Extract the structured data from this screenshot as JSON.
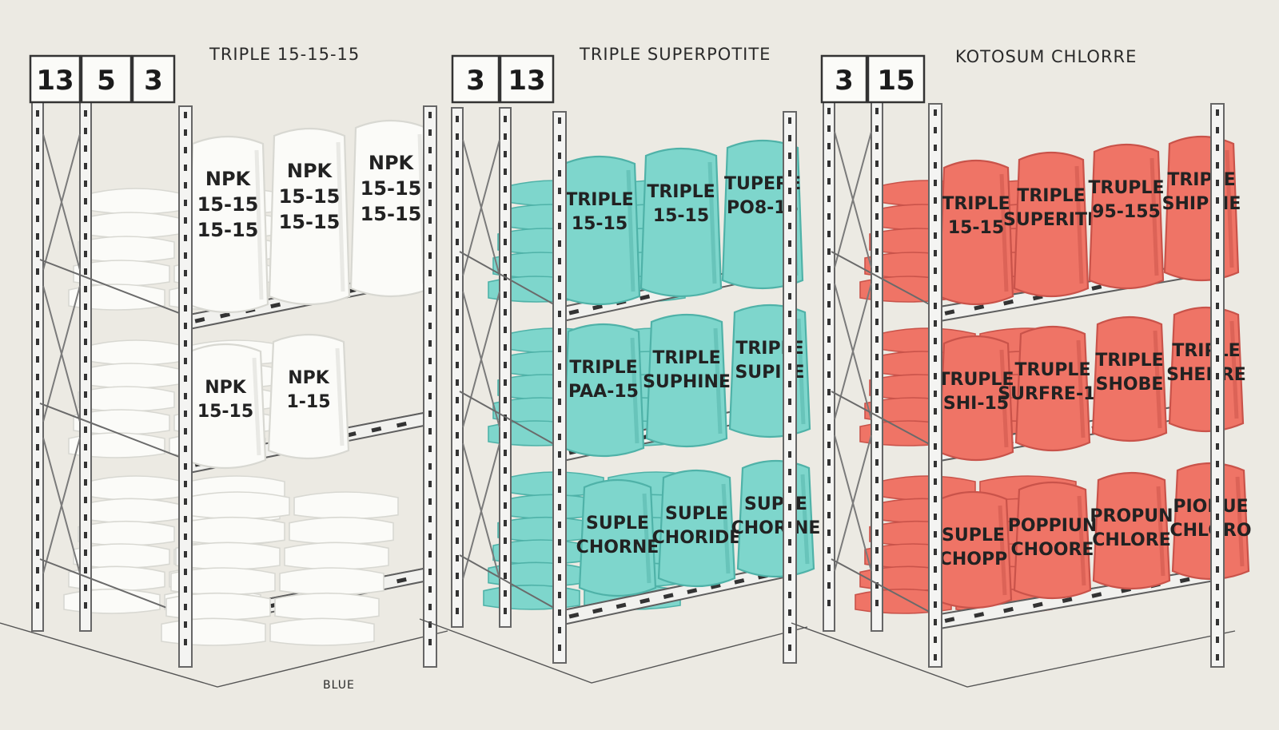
{
  "racks": [
    {
      "id": "white",
      "title": "TRIPLE 15-15-15",
      "signs": [
        "13",
        "5",
        "3"
      ],
      "bag_color": "#fbfbf8",
      "bag_shadow": "#d8d8d2",
      "top_labels": [
        [
          "NPK",
          "15-15",
          "15-15"
        ],
        [
          "NPK",
          "15-15",
          "15-15"
        ],
        [
          "NPK",
          "15-15",
          "15-15"
        ]
      ],
      "mid_labels": [
        [
          "NPK",
          "15-15"
        ],
        [
          "NPK",
          "1-15"
        ]
      ],
      "bottom_labels": []
    },
    {
      "id": "teal",
      "title": "TRIPLE SUPERPOTITE",
      "signs": [
        "3",
        "13"
      ],
      "bag_color": "#7ed6cc",
      "bag_shadow": "#4fb2a8",
      "top_labels": [
        [
          "TRIPLE",
          "15-15"
        ],
        [
          "TRIPLE",
          "15-15"
        ],
        [
          "TUPERE",
          "PO8-15"
        ]
      ],
      "mid_labels": [
        [
          "TRIPLE",
          "PAA-15"
        ],
        [
          "TRIPLE",
          "SUPHINE"
        ],
        [
          "TRIPLE",
          "SUPILE"
        ]
      ],
      "bottom_labels": [
        [
          "SUPLE",
          "CHORNE"
        ],
        [
          "SUPLE",
          "CHORIDE"
        ],
        [
          "SUPLE",
          "CHORINE"
        ]
      ]
    },
    {
      "id": "red",
      "title": "KOTOSUM CHLORRE",
      "signs": [
        "3",
        "15"
      ],
      "bag_color": "#ef7466",
      "bag_shadow": "#c9534a",
      "top_labels": [
        [
          "TRIPLE",
          "15-15"
        ],
        [
          "TRIPLE",
          "SUPERITE"
        ],
        [
          "TRUPLE",
          "95-155"
        ],
        [
          "TRIPLE",
          "SHIPRIE"
        ]
      ],
      "mid_labels": [
        [
          "TRUPLE",
          "SHI-15"
        ],
        [
          "TRUPLE",
          "SURFRE-15"
        ],
        [
          "TRIPLE",
          "SHOBE"
        ],
        [
          "TRIPLE",
          "SHEHRE"
        ]
      ],
      "bottom_labels": [
        [
          "SUPLE",
          "CHOPP"
        ],
        [
          "POPPIUN",
          "CHOORE"
        ],
        [
          "PROPUN",
          "CHLORE"
        ],
        [
          "PIONUE",
          "CHLORO"
        ]
      ]
    }
  ],
  "floor_marks": [
    "BLUE"
  ]
}
